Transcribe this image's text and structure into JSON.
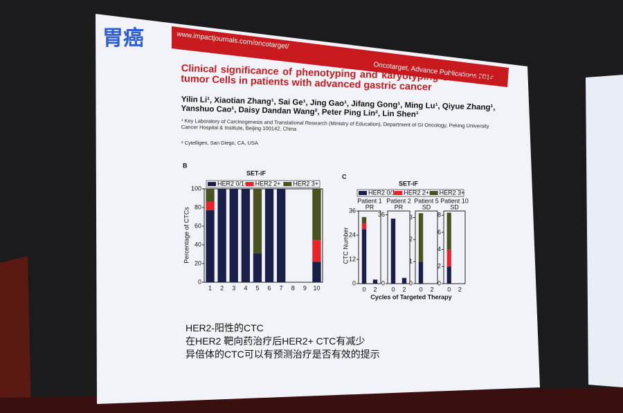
{
  "slide": {
    "topic": "胃癌",
    "journal_url": "www.impactjournals.com/oncotarget/",
    "journal_info": "Oncotarget, Advance Publications 2014",
    "title": "Clinical significance of phenotyping and karyotyping of circulating tumor Cells in patients with advanced gastric cancer",
    "authors": "Yilin Li¹, Xiaotian Zhang¹, Sai Ge¹, Jing Gao¹, Jifang Gong¹, Ming Lu¹, Qiyue Zhang¹, Yanshuo Cao¹, Daisy Dandan Wang², Peter Ping Lin², Lin Shen¹",
    "affiliations": [
      "¹ Key Laboratory of Carcinogenesis and Translational Research (Ministry of Education), Department of GI Oncology, Peking University Cancer Hospital & Institute, Beijing 100142, China",
      "² Cytelligen, San Diego, CA, USA"
    ],
    "bullets": [
      "HER2-阳性的CTC",
      "在HER2 靶向药治疗后HER2+ CTC有减少",
      "异倍体的CTC可以有预测治疗是否有效的提示"
    ]
  },
  "chart_data": [
    {
      "type": "bar",
      "stacked": true,
      "panel_label": "B",
      "title": "SET-iF",
      "y_label": "Percentage of CTCs",
      "categories": [
        "1",
        "2",
        "3",
        "4",
        "5",
        "6",
        "7",
        "8",
        "9",
        "10"
      ],
      "series": [
        {
          "name": "HER2 0/1+",
          "color": "#1a1f4a",
          "values": [
            77,
            100,
            100,
            100,
            31,
            100,
            100,
            0,
            0,
            22
          ]
        },
        {
          "name": "HER2 2+",
          "color": "#e8232a",
          "values": [
            9,
            0,
            0,
            0,
            0,
            0,
            0,
            0,
            0,
            23
          ]
        },
        {
          "name": "HER2 3+",
          "color": "#4a5220",
          "values": [
            14,
            0,
            0,
            0,
            69,
            0,
            0,
            0,
            0,
            55
          ]
        }
      ],
      "ylim": [
        0,
        100
      ],
      "yticks": [
        0,
        20,
        40,
        60,
        80,
        100
      ]
    },
    {
      "type": "bar",
      "stacked": true,
      "panel_label": "C",
      "title": "SET-iF",
      "y_label": "CTC Number",
      "x_label": "Cycles of Targeted Therapy",
      "series": [
        {
          "name": "HER2 0/1+",
          "color": "#1a1f4a"
        },
        {
          "name": "HER2 2+",
          "color": "#e8232a"
        },
        {
          "name": "HER2 3+",
          "color": "#4a5220"
        }
      ],
      "panels": [
        {
          "title": "Patient 1",
          "subtitle": "PR",
          "categories": [
            "0",
            "2"
          ],
          "series": [
            {
              "values": [
                27,
                2
              ]
            },
            {
              "values": [
                3,
                0
              ]
            },
            {
              "values": [
                3,
                0
              ]
            }
          ],
          "ylim": [
            0,
            36
          ],
          "yticks": [
            0,
            12,
            24,
            36
          ]
        },
        {
          "title": "Patient 2",
          "subtitle": "PR",
          "categories": [
            "0",
            "2"
          ],
          "series": [
            {
              "values": [
                34,
                3
              ]
            },
            {
              "values": [
                0,
                0
              ]
            },
            {
              "values": [
                0,
                0
              ]
            }
          ],
          "ylim": [
            0,
            38
          ],
          "yticks": [
            0,
            36
          ]
        },
        {
          "title": "Patient 5",
          "subtitle": "SD",
          "categories": [
            "0",
            "2"
          ],
          "series": [
            {
              "values": [
                1,
                0
              ]
            },
            {
              "values": [
                0,
                0
              ]
            },
            {
              "values": [
                2.2,
                0
              ]
            }
          ],
          "ylim": [
            0,
            3.3
          ],
          "yticks": [
            0,
            1,
            2,
            3
          ]
        },
        {
          "title": "Patient 10",
          "subtitle": "SD",
          "categories": [
            "0",
            "2"
          ],
          "series": [
            {
              "values": [
                2,
                0
              ]
            },
            {
              "values": [
                2,
                0
              ]
            },
            {
              "values": [
                4.3,
                0
              ]
            }
          ],
          "ylim": [
            0,
            8.5
          ],
          "yticks": [
            0,
            2,
            4,
            6,
            8
          ]
        }
      ]
    }
  ]
}
